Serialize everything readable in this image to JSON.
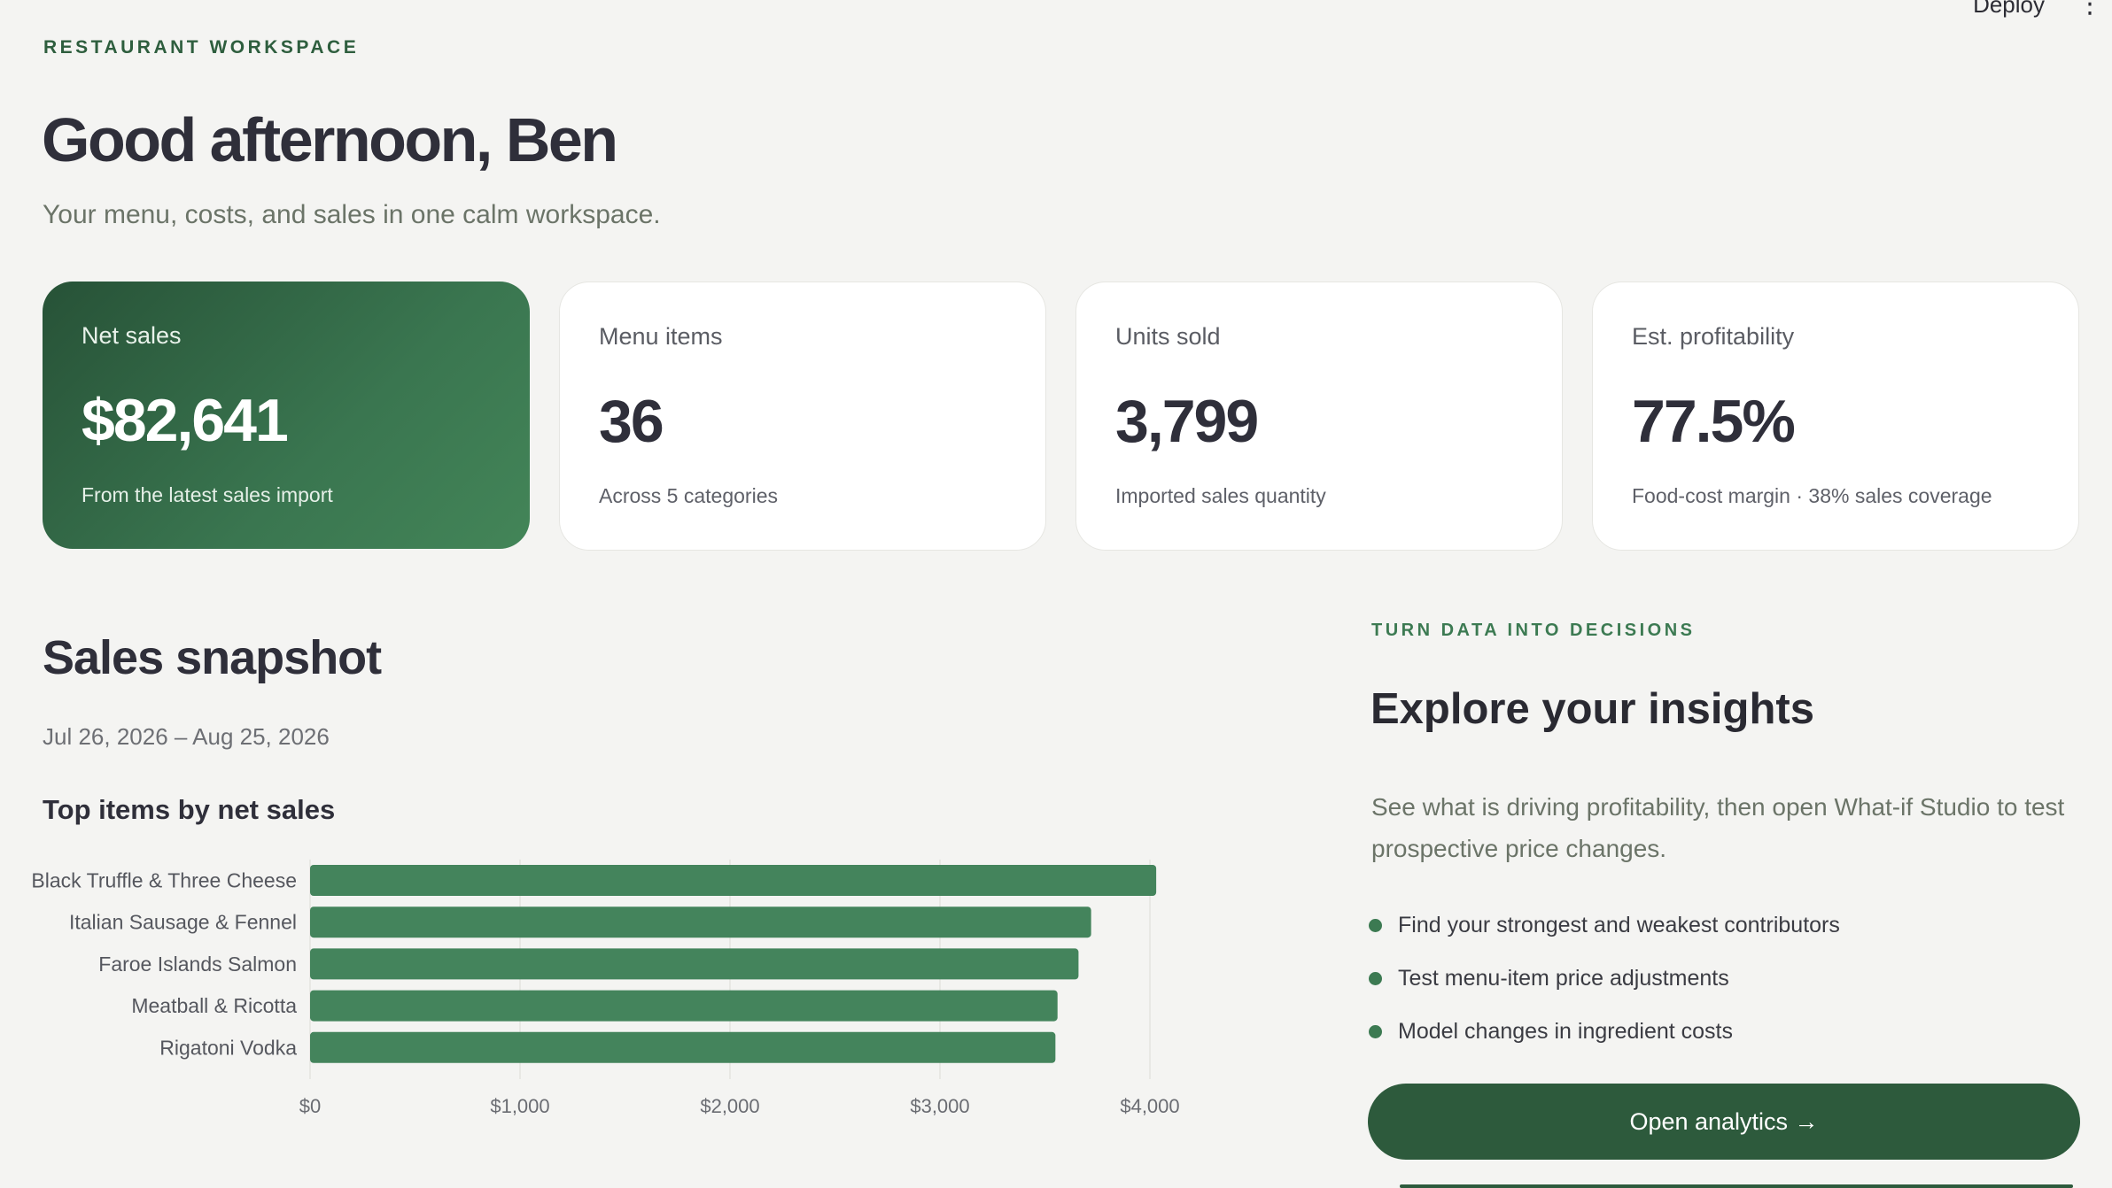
{
  "topbar": {
    "deploy_label": "Deploy",
    "menu_icon": "kebab-menu-icon"
  },
  "header": {
    "eyebrow": "RESTAURANT WORKSPACE",
    "greeting": "Good afternoon, Ben",
    "subtitle": "Your menu, costs, and sales in one calm workspace."
  },
  "stats": [
    {
      "label": "Net sales",
      "value": "$82,641",
      "note": "From the latest sales import"
    },
    {
      "label": "Menu items",
      "value": "36",
      "note": "Across 5 categories"
    },
    {
      "label": "Units sold",
      "value": "3,799",
      "note": "Imported sales quantity"
    },
    {
      "label": "Est. profitability",
      "value": "77.5%",
      "note": "Food-cost margin · 38% sales coverage"
    }
  ],
  "sales": {
    "title": "Sales snapshot",
    "date_range": "Jul 26, 2026 – Aug 25, 2026",
    "chart_title": "Top items by net sales"
  },
  "chart_data": {
    "type": "bar",
    "orientation": "horizontal",
    "title": "Top items by net sales",
    "categories": [
      "Black Truffle & Three Cheese",
      "Italian Sausage & Fennel",
      "Faroe Islands Salmon",
      "Meatball & Ricotta",
      "Rigatoni Vodka"
    ],
    "values": [
      4030,
      3720,
      3660,
      3560,
      3550
    ],
    "xlim": [
      0,
      4000
    ],
    "xticks": [
      "$0",
      "$1,000",
      "$2,000",
      "$3,000",
      "$4,000"
    ],
    "xtick_values": [
      0,
      1000,
      2000,
      3000,
      4000
    ],
    "grid": true,
    "bar_color": "#44845c"
  },
  "insights": {
    "eyebrow": "TURN DATA INTO DECISIONS",
    "title": "Explore your insights",
    "description": "See what is driving profitability, then open What-if Studio to test prospective price changes.",
    "bullets": [
      "Find your strongest and weakest contributors",
      "Test menu-item price adjustments",
      "Model changes in ingredient costs"
    ],
    "cta_label": "Open analytics →"
  }
}
